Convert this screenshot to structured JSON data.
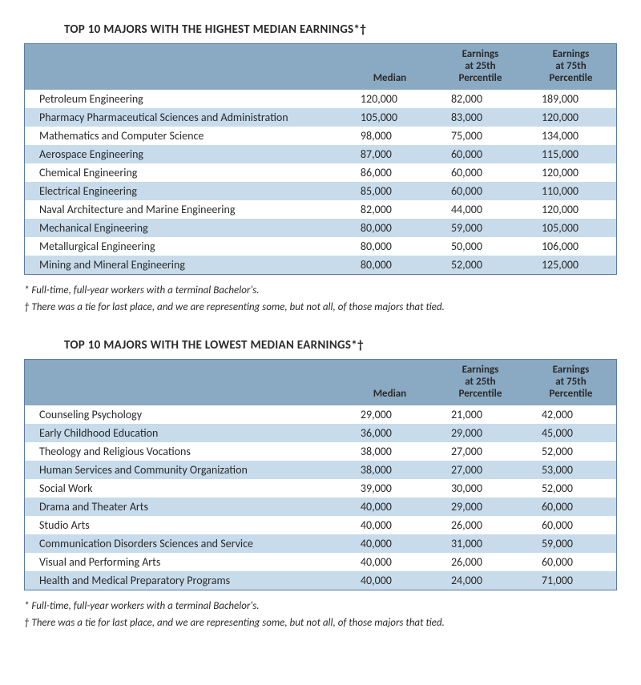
{
  "colors": {
    "header_bg": "#8aa9c2",
    "stripe_even": "#c7dbeb",
    "stripe_odd": "#ffffff",
    "border": "#5b7ca1",
    "text": "#2a2a2a",
    "background": "#ffffff"
  },
  "tables": [
    {
      "title": "TOP 10 MAJORS WITH THE HIGHEST MEDIAN EARNINGS*†",
      "columns": [
        "",
        "Median",
        "Earnings at 25th Percentile",
        "Earnings at 75th Percentile"
      ],
      "rows": [
        [
          "Petroleum Engineering",
          "120,000",
          "82,000",
          "189,000"
        ],
        [
          "Pharmacy Pharmaceutical Sciences and Administration",
          "105,000",
          "83,000",
          "120,000"
        ],
        [
          "Mathematics and Computer Science",
          "98,000",
          "75,000",
          "134,000"
        ],
        [
          "Aerospace Engineering",
          "87,000",
          "60,000",
          "115,000"
        ],
        [
          "Chemical Engineering",
          "86,000",
          "60,000",
          "120,000"
        ],
        [
          "Electrical Engineering",
          "85,000",
          "60,000",
          "110,000"
        ],
        [
          "Naval Architecture and Marine Engineering",
          "82,000",
          "44,000",
          "120,000"
        ],
        [
          "Mechanical Engineering",
          "80,000",
          "59,000",
          "105,000"
        ],
        [
          "Metallurgical Engineering",
          "80,000",
          "50,000",
          "106,000"
        ],
        [
          "Mining and Mineral Engineering",
          "80,000",
          "52,000",
          "125,000"
        ]
      ],
      "footnotes": [
        "* Full-time, full-year workers with a terminal Bachelor's.",
        "† There was a tie for last place, and we are representing some, but not all, of those majors that tied."
      ]
    },
    {
      "title": "TOP 10 MAJORS WITH THE LOWEST MEDIAN EARNINGS*†",
      "columns": [
        "",
        "Median",
        "Earnings at 25th Percentile",
        "Earnings at 75th Percentile"
      ],
      "rows": [
        [
          "Counseling Psychology",
          "29,000",
          "21,000",
          "42,000"
        ],
        [
          "Early Childhood Education",
          "36,000",
          "29,000",
          "45,000"
        ],
        [
          "Theology and Religious Vocations",
          "38,000",
          "27,000",
          "52,000"
        ],
        [
          "Human Services and Community Organization",
          "38,000",
          "27,000",
          "53,000"
        ],
        [
          "Social Work",
          "39,000",
          "30,000",
          "52,000"
        ],
        [
          "Drama and Theater Arts",
          "40,000",
          "29,000",
          "60,000"
        ],
        [
          "Studio Arts",
          "40,000",
          "26,000",
          "60,000"
        ],
        [
          "Communication Disorders Sciences and Service",
          "40,000",
          "31,000",
          "59,000"
        ],
        [
          "Visual and Performing Arts",
          "40,000",
          "26,000",
          "60,000"
        ],
        [
          "Health and Medical Preparatory Programs",
          "40,000",
          "24,000",
          "71,000"
        ]
      ],
      "footnotes": [
        "* Full-time, full-year workers with a terminal Bachelor's.",
        "† There was a tie for last place, and we are representing some, but not all, of those majors that tied."
      ]
    }
  ]
}
